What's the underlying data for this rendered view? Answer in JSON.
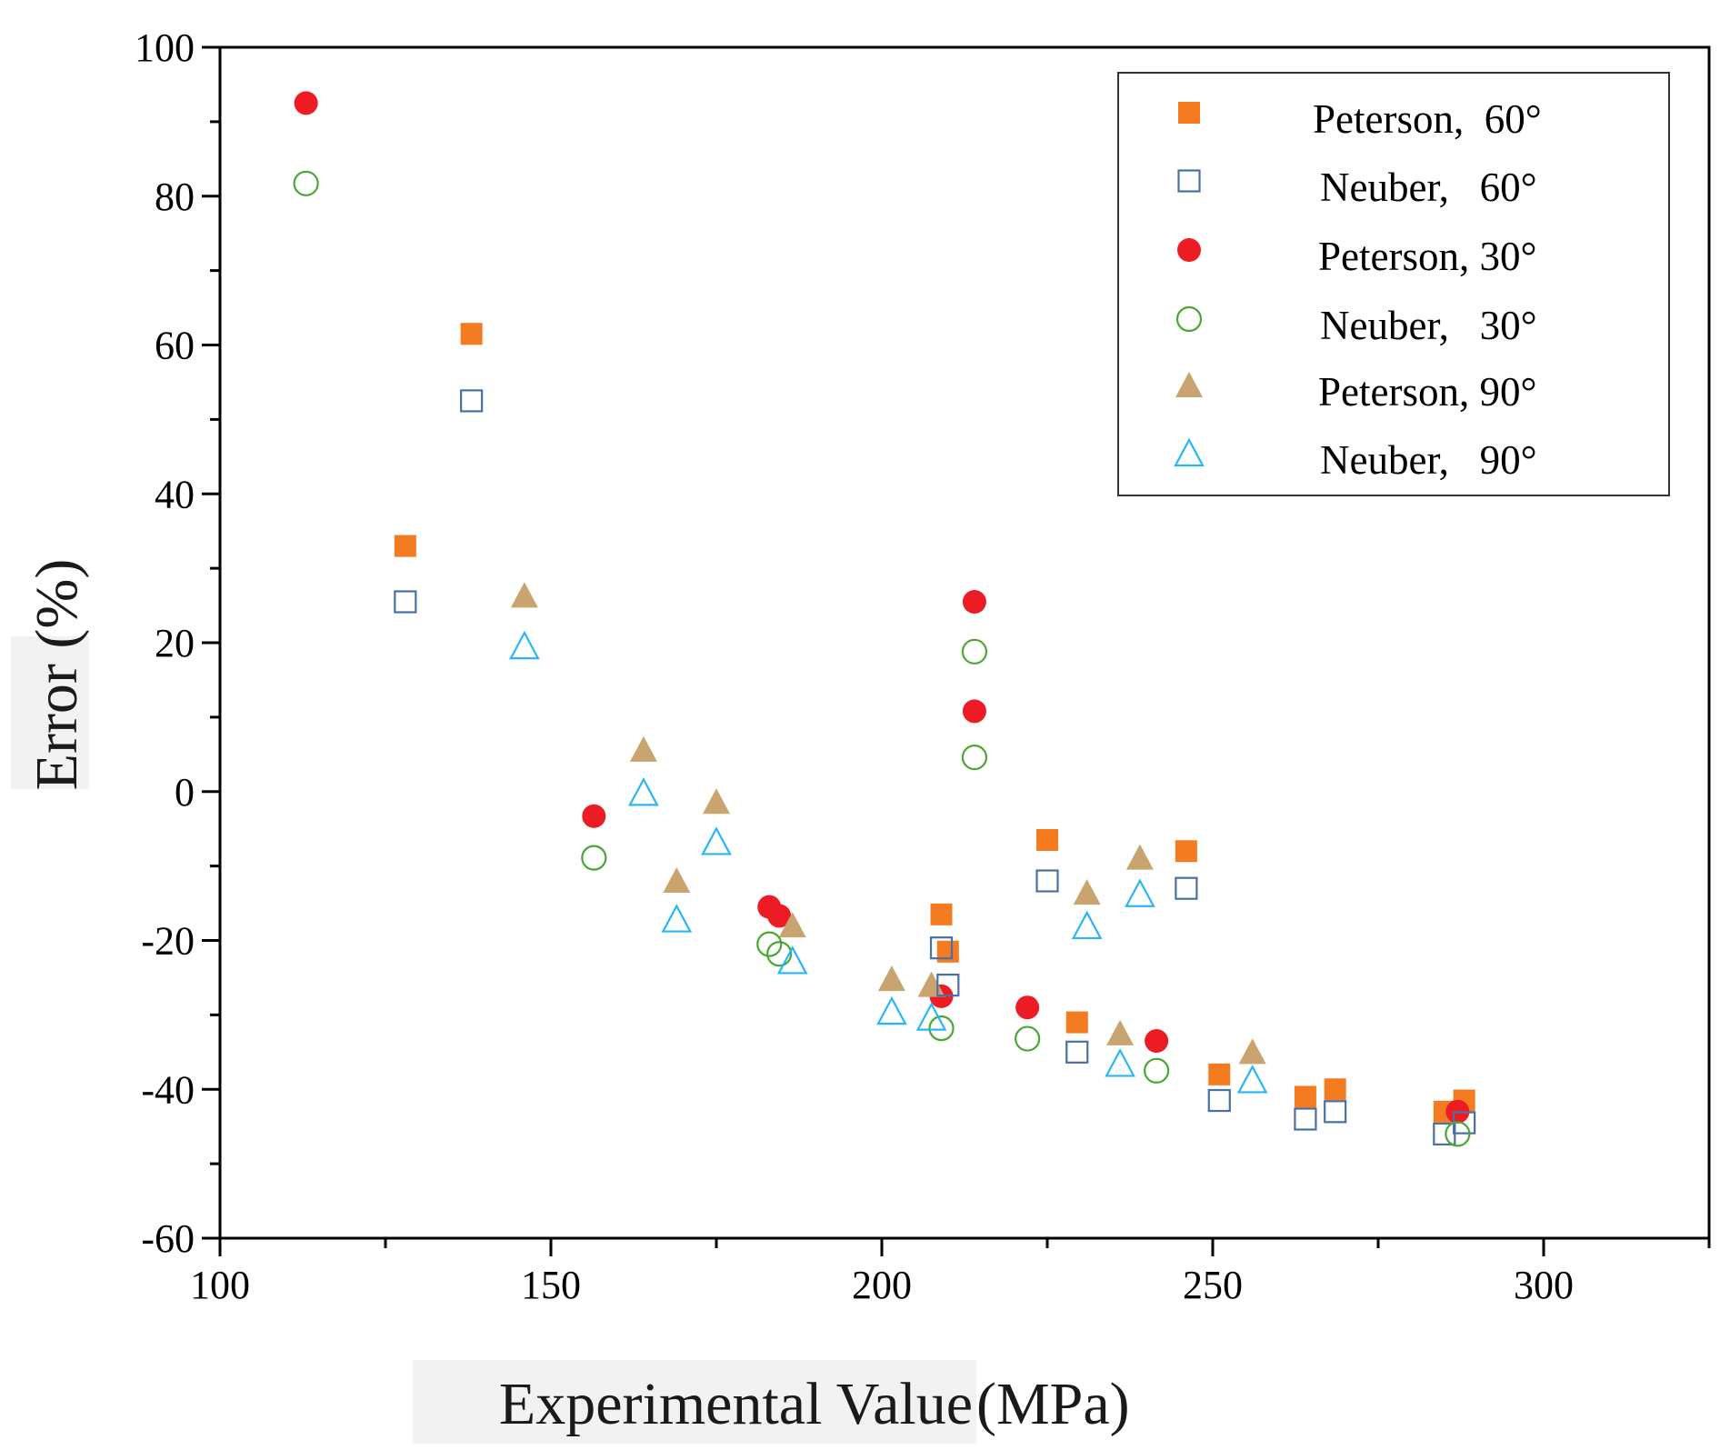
{
  "chart_data": {
    "type": "scatter",
    "title": "",
    "xlabel": "Experimental Value",
    "xlabel_unit": "(MPa)",
    "ylabel": "Error (%)",
    "xlim": [
      100,
      325
    ],
    "ylim": [
      -60,
      100
    ],
    "x_ticks": [
      100,
      150,
      200,
      250,
      300
    ],
    "y_ticks": [
      -60,
      -40,
      -20,
      0,
      20,
      40,
      60,
      80,
      100
    ],
    "legend_position": "top-right",
    "colors": {
      "orange": "#f47b20",
      "steel": "#4a6fa5",
      "red": "#ed1c24",
      "green": "#4aa832",
      "tan": "#c9a46e",
      "cyan": "#29b6f6"
    },
    "series": [
      {
        "name": "Peterson,  60°",
        "marker": "square-filled",
        "color": "#f47b20",
        "points": [
          [
            128,
            33
          ],
          [
            138,
            61.5
          ],
          [
            209,
            -16.5
          ],
          [
            210,
            -21.5
          ],
          [
            225,
            -6.5
          ],
          [
            229.5,
            -31
          ],
          [
            246,
            -8
          ],
          [
            251,
            -38
          ],
          [
            264,
            -41
          ],
          [
            268.5,
            -40
          ],
          [
            285,
            -43
          ],
          [
            288,
            -41.5
          ]
        ]
      },
      {
        "name": "Neuber,   60°",
        "marker": "square-open",
        "color": "#4a6fa5",
        "points": [
          [
            128,
            25.5
          ],
          [
            138,
            52.5
          ],
          [
            209,
            -21
          ],
          [
            210,
            -26
          ],
          [
            225,
            -12
          ],
          [
            229.5,
            -35
          ],
          [
            246,
            -13
          ],
          [
            251,
            -41.5
          ],
          [
            264,
            -44
          ],
          [
            268.5,
            -43
          ],
          [
            285,
            -46
          ],
          [
            288,
            -44.5
          ]
        ]
      },
      {
        "name": "Peterson, 30°",
        "marker": "circle-filled",
        "color": "#ed1c24",
        "points": [
          [
            113,
            92.5
          ],
          [
            156.5,
            -3.3
          ],
          [
            183,
            -15.5
          ],
          [
            184.5,
            -16.7
          ],
          [
            209,
            -27.5
          ],
          [
            214,
            25.5
          ],
          [
            214,
            10.8
          ],
          [
            222,
            -29
          ],
          [
            241.5,
            -33.5
          ],
          [
            287,
            -43
          ]
        ]
      },
      {
        "name": "Neuber,   30°",
        "marker": "circle-open",
        "color": "#4aa832",
        "points": [
          [
            113,
            81.7
          ],
          [
            156.5,
            -8.9
          ],
          [
            183,
            -20.5
          ],
          [
            184.5,
            -21.8
          ],
          [
            209,
            -31.8
          ],
          [
            214,
            18.8
          ],
          [
            214,
            4.6
          ],
          [
            222,
            -33.2
          ],
          [
            241.5,
            -37.5
          ],
          [
            287,
            -46
          ]
        ]
      },
      {
        "name": "Peterson, 90°",
        "marker": "triangle-filled",
        "color": "#c9a46e",
        "points": [
          [
            146,
            26.3
          ],
          [
            164,
            5.6
          ],
          [
            169,
            -12
          ],
          [
            175,
            -1.4
          ],
          [
            186.5,
            -18
          ],
          [
            201.5,
            -25.2
          ],
          [
            207.5,
            -26
          ],
          [
            231,
            -13.6
          ],
          [
            236,
            -32.5
          ],
          [
            239,
            -8.9
          ],
          [
            256,
            -35
          ]
        ]
      },
      {
        "name": "Neuber,   90°",
        "marker": "triangle-open",
        "color": "#29b6f6",
        "points": [
          [
            146,
            19.5
          ],
          [
            164,
            -0.2
          ],
          [
            169,
            -17.2
          ],
          [
            175,
            -6.8
          ],
          [
            186.5,
            -22.8
          ],
          [
            201.5,
            -29.6
          ],
          [
            207.5,
            -30.4
          ],
          [
            231,
            -18.1
          ],
          [
            236,
            -36.6
          ],
          [
            239,
            -13.8
          ],
          [
            256,
            -38.8
          ]
        ]
      }
    ]
  }
}
